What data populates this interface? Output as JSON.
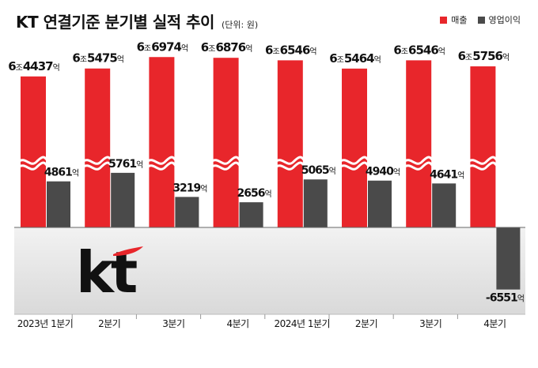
{
  "header": {
    "title": "KT 연결기준 분기별 실적 추이",
    "unit": "(단위: 원)"
  },
  "legend": {
    "items": [
      {
        "label": "매출",
        "color": "#e8262b"
      },
      {
        "label": "영업이익",
        "color": "#4a4a4a"
      }
    ]
  },
  "logo": {
    "text": "kt",
    "color": "#111111",
    "accent": "#e8262b"
  },
  "chart_data": {
    "type": "bar",
    "categories": [
      "2023년 1분기",
      "2분기",
      "3분기",
      "4분기",
      "2024년 1분기",
      "2분기",
      "3분기",
      "4분기"
    ],
    "series": [
      {
        "name": "매출",
        "color": "#e8262b",
        "values": [
          6.4437,
          6.5475,
          6.6974,
          6.6876,
          6.6546,
          6.5464,
          6.6546,
          6.5756
        ],
        "labels": [
          "6조4437억",
          "6조5475억",
          "6조6974억",
          "6조6876억",
          "6조6546억",
          "6조5464억",
          "6조6546억",
          "6조5756억"
        ],
        "unit": "조"
      },
      {
        "name": "영업이익",
        "color": "#4a4a4a",
        "values": [
          4861,
          5761,
          3219,
          2656,
          5065,
          4940,
          4641,
          -6551
        ],
        "labels": [
          "4861억",
          "5761억",
          "3219억",
          "2656억",
          "5065억",
          "4940억",
          "4641억",
          "-6551억"
        ],
        "unit": "억"
      }
    ],
    "axis_break": true,
    "grid": false,
    "legend_position": "top-right"
  },
  "styles": {
    "negative_area_color": "#ececec",
    "baseline_color": "#666666"
  }
}
